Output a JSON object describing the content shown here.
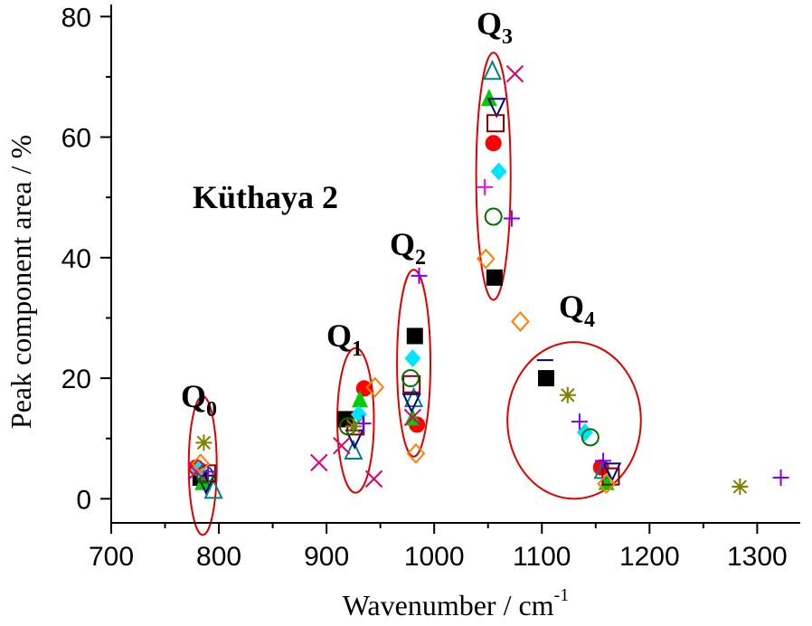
{
  "chart_data": {
    "type": "scatter",
    "xlabel": "Wavenumber / cm",
    "xlabel_sup": "-1",
    "ylabel": "Peak component area / %",
    "xlim": [
      700,
      1340
    ],
    "ylim": [
      -4,
      82
    ],
    "xticks": [
      700,
      800,
      900,
      1000,
      1100,
      1200,
      1300
    ],
    "yticks": [
      0,
      20,
      40,
      60,
      80
    ],
    "grid": false,
    "legend": "none",
    "annotations": [
      {
        "id": "sample",
        "text": "Küthaya 2",
        "sub": ""
      },
      {
        "id": "q0",
        "text": "Q",
        "sub": "0"
      },
      {
        "id": "q1",
        "text": "Q",
        "sub": "1"
      },
      {
        "id": "q2",
        "text": "Q",
        "sub": "2"
      },
      {
        "id": "q3",
        "text": "Q",
        "sub": "3"
      },
      {
        "id": "q4",
        "text": "Q",
        "sub": "4"
      }
    ],
    "groups": [
      {
        "id": "Q0",
        "ellipse_center": [
          785,
          5.5
        ],
        "ellipse_radii": [
          13,
          11.5
        ]
      },
      {
        "id": "Q1",
        "ellipse_center": [
          927,
          13
        ],
        "ellipse_radii": [
          17,
          12
        ]
      },
      {
        "id": "Q2",
        "ellipse_center": [
          981,
          22.5
        ],
        "ellipse_radii": [
          15.5,
          15.5
        ]
      },
      {
        "id": "Q3",
        "ellipse_center": [
          1055,
          53.5
        ],
        "ellipse_radii": [
          16,
          20.5
        ]
      },
      {
        "id": "Q4",
        "ellipse_center": [
          1130,
          13
        ],
        "ellipse_radii": [
          62,
          13
        ]
      }
    ],
    "colors": {
      "ellipse": "#e00000",
      "black": "#000000",
      "red": "#ff0000",
      "green": "#00cc00",
      "teal": "#008080",
      "navy": "#000080",
      "maroon": "#800000",
      "cyan": "#00e5ff",
      "darkgreen": "#007000",
      "purple": "#8000ff",
      "magenta": "#ff00ff",
      "crimson": "#e0006a",
      "orange": "#ff8000",
      "olive": "#808000"
    },
    "series": [
      {
        "marker": "square-filled",
        "color": "black",
        "points": [
          [
            783,
            3.5
          ],
          [
            918,
            13.2
          ],
          [
            982,
            27
          ],
          [
            1056,
            36.7
          ],
          [
            1104,
            20
          ]
        ]
      },
      {
        "marker": "circle-filled",
        "color": "red",
        "points": [
          [
            779,
            5.2
          ],
          [
            935,
            18.3
          ],
          [
            984,
            12.3
          ],
          [
            1055,
            59
          ],
          [
            1155,
            5.2
          ]
        ]
      },
      {
        "marker": "triangle-up-filled",
        "color": "green",
        "points": [
          [
            785,
            2.8
          ],
          [
            931,
            16.5
          ],
          [
            980,
            13.5
          ],
          [
            1051,
            66.5
          ],
          [
            1160,
            2.8
          ]
        ]
      },
      {
        "marker": "triangle-up-open",
        "color": "teal",
        "points": [
          [
            795,
            1.5
          ],
          [
            925,
            8
          ],
          [
            981,
            16.7
          ],
          [
            1054,
            71
          ],
          [
            1157,
            4.8
          ]
        ]
      },
      {
        "marker": "triangle-down-open",
        "color": "navy",
        "points": [
          [
            788,
            2.5
          ],
          [
            926,
            10
          ],
          [
            979,
            16
          ],
          [
            1058,
            65
          ],
          [
            1165,
            4.5
          ]
        ]
      },
      {
        "marker": "square-open",
        "color": "maroon",
        "points": [
          [
            789,
            4.2
          ],
          [
            927,
            12
          ],
          [
            979,
            19
          ],
          [
            1057,
            62.3
          ],
          [
            1164,
            3.7
          ]
        ]
      },
      {
        "marker": "diamond-filled",
        "color": "cyan",
        "points": [
          [
            781,
            4.8
          ],
          [
            930,
            14
          ],
          [
            980,
            23.3
          ],
          [
            1060,
            54.3
          ],
          [
            1140,
            11
          ]
        ]
      },
      {
        "marker": "circle-open",
        "color": "darkgreen",
        "points": [
          [
            787,
            4.0
          ],
          [
            920,
            12
          ],
          [
            978,
            20
          ],
          [
            1055,
            46.8
          ],
          [
            1145,
            10.2
          ]
        ]
      },
      {
        "marker": "plus",
        "color": "purple",
        "points": [
          [
            790,
            4.5
          ],
          [
            934,
            12.5
          ],
          [
            986,
            37
          ],
          [
            1072,
            46.5
          ],
          [
            1135,
            12.8
          ],
          [
            1157,
            6.3
          ],
          [
            1322,
            3.5
          ]
        ]
      },
      {
        "marker": "plus",
        "color": "magenta",
        "points": [
          [
            1047,
            51.7
          ]
        ]
      },
      {
        "marker": "x",
        "color": "crimson",
        "points": [
          [
            779,
            4.5
          ],
          [
            893,
            6
          ],
          [
            914,
            8.8
          ],
          [
            944,
            3.3
          ],
          [
            980,
            13.5
          ],
          [
            1075,
            70.5
          ]
        ]
      },
      {
        "marker": "diamond-open",
        "color": "orange",
        "points": [
          [
            783,
            5.8
          ],
          [
            945,
            18.5
          ],
          [
            983,
            7.5
          ],
          [
            1048,
            39.8
          ],
          [
            1080,
            29.4
          ],
          [
            1160,
            2.5
          ]
        ]
      },
      {
        "marker": "asterisk",
        "color": "olive",
        "points": [
          [
            786,
            9.3
          ],
          [
            925,
            12
          ],
          [
            1124,
            17.2
          ],
          [
            1284,
            2
          ]
        ]
      },
      {
        "marker": "dash",
        "color": "navy",
        "points": [
          [
            1103,
            23
          ]
        ]
      }
    ]
  }
}
